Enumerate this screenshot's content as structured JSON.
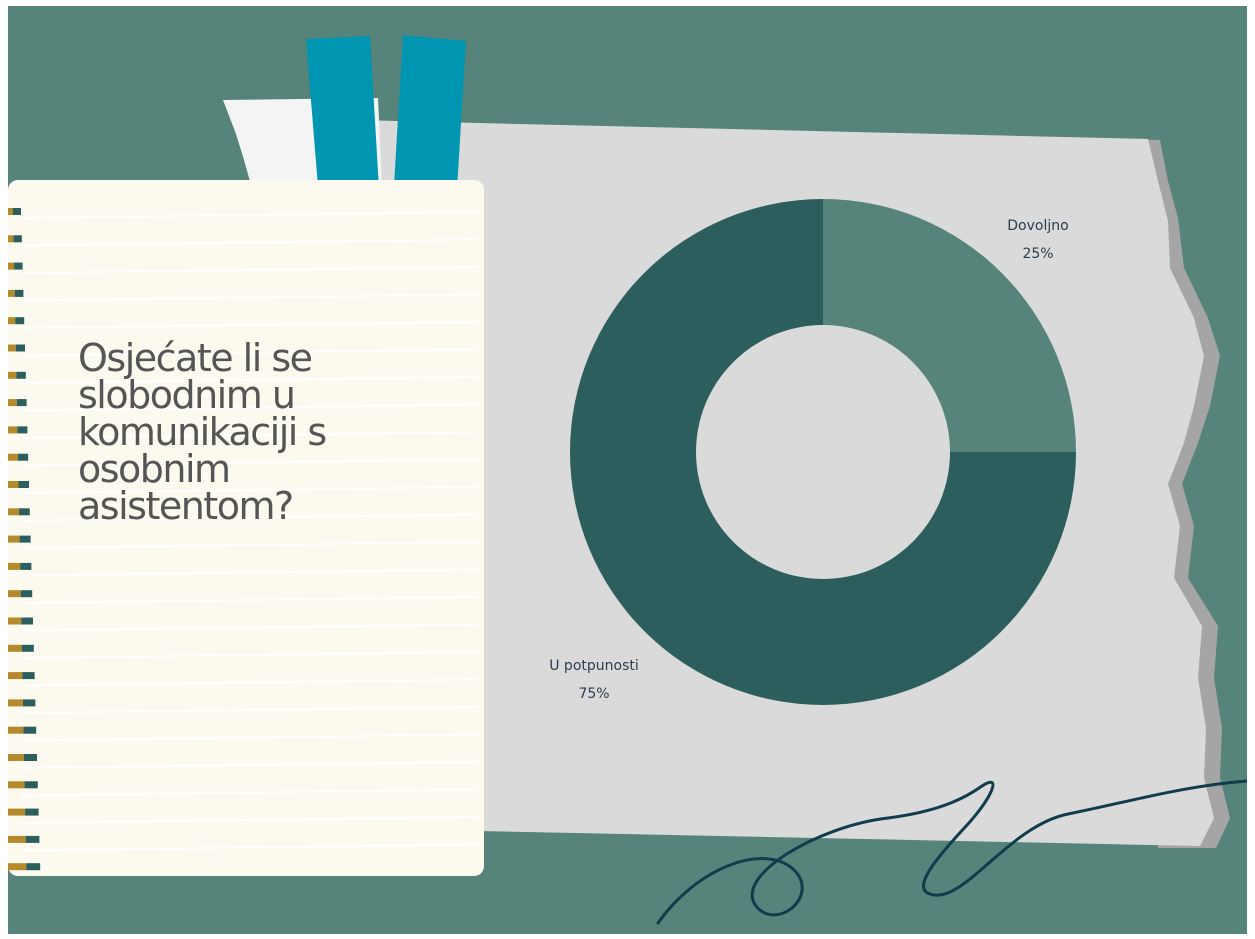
{
  "question": "Osjećate li se slobodnim u komunikaciji s osobnim asistentom?",
  "colors": {
    "background": "#56847a",
    "paper": "#dadada",
    "notebook": "#fcf9ef",
    "tape": "#0096b2",
    "slice_dovoljno": "#56847a",
    "slice_u_potpunosti": "#2b5e5d",
    "squiggle": "#113c4d"
  },
  "chart_data": {
    "type": "pie",
    "donut": true,
    "title": "",
    "slices": [
      {
        "label": "Dovoljno",
        "value": 25,
        "display": "25%"
      },
      {
        "label": "U potpunosti",
        "value": 75,
        "display": "75%"
      }
    ],
    "start_angle": "top",
    "direction": "clockwise",
    "legend": "none"
  }
}
